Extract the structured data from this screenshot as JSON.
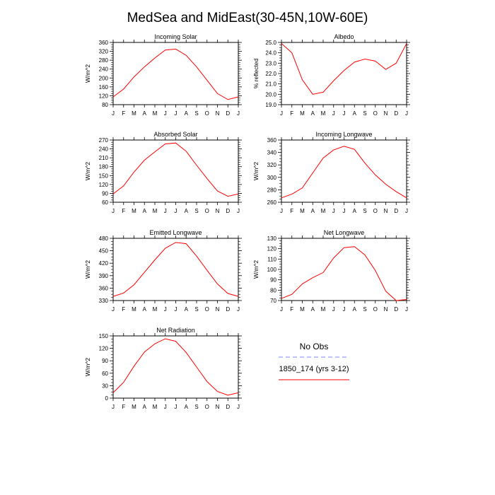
{
  "title": "MedSea and MidEast(30-45N,10W-60E)",
  "colors": {
    "model": "#ff0000",
    "obs": "#8080ff",
    "axis": "#000000"
  },
  "legend": {
    "entries": [
      {
        "label": "No Obs",
        "color": "#8080ff",
        "style": "dashed"
      },
      {
        "label": "1850_174 (yrs 3-12)",
        "color": "#ff0000",
        "style": "solid"
      }
    ]
  },
  "chart_data": [
    {
      "type": "line",
      "title": "Incoming Solar",
      "ylabel": "W/m^2",
      "categories": [
        "J",
        "F",
        "M",
        "A",
        "M",
        "J",
        "J",
        "A",
        "S",
        "O",
        "N",
        "D",
        "J"
      ],
      "ylim": [
        80,
        360
      ],
      "yticks": [
        80,
        120,
        160,
        200,
        240,
        280,
        320,
        360
      ],
      "ytick_labels": [
        "80",
        "120",
        "160",
        "200",
        "240",
        "280",
        "320",
        "360"
      ],
      "series": [
        {
          "values": [
            115,
            150,
            205,
            250,
            290,
            326,
            330,
            302,
            250,
            190,
            130,
            103,
            115
          ]
        }
      ]
    },
    {
      "type": "line",
      "title": "Albedo",
      "ylabel": "% reflected",
      "categories": [
        "J",
        "F",
        "M",
        "A",
        "M",
        "J",
        "J",
        "A",
        "S",
        "O",
        "N",
        "D",
        "J"
      ],
      "ylim": [
        19,
        25
      ],
      "yticks": [
        19,
        20,
        21,
        22,
        23,
        24,
        25
      ],
      "ytick_labels": [
        "19.0",
        "20.0",
        "21.0",
        "22.0",
        "23.0",
        "24.0",
        "25.0"
      ],
      "series": [
        {
          "values": [
            24.9,
            24.0,
            21.4,
            20.0,
            20.2,
            21.3,
            22.3,
            23.1,
            23.4,
            23.2,
            22.4,
            23.0,
            24.9
          ]
        }
      ]
    },
    {
      "type": "line",
      "title": "Absorbed Solar",
      "ylabel": "W/m^2",
      "categories": [
        "J",
        "F",
        "M",
        "A",
        "M",
        "J",
        "J",
        "A",
        "S",
        "O",
        "N",
        "D",
        "J"
      ],
      "ylim": [
        60,
        270
      ],
      "yticks": [
        60,
        90,
        120,
        150,
        180,
        210,
        240,
        270
      ],
      "ytick_labels": [
        "60",
        "90",
        "120",
        "150",
        "180",
        "210",
        "240",
        "270"
      ],
      "series": [
        {
          "values": [
            88,
            115,
            162,
            202,
            230,
            257,
            260,
            232,
            185,
            140,
            98,
            80,
            88
          ]
        }
      ]
    },
    {
      "type": "line",
      "title": "Incoming Longwave",
      "ylabel": "W/m^2",
      "categories": [
        "J",
        "F",
        "M",
        "A",
        "M",
        "J",
        "J",
        "A",
        "S",
        "O",
        "N",
        "D",
        "J"
      ],
      "ylim": [
        260,
        360
      ],
      "yticks": [
        260,
        280,
        300,
        320,
        340,
        360
      ],
      "ytick_labels": [
        "260",
        "280",
        "300",
        "320",
        "340",
        "360"
      ],
      "series": [
        {
          "values": [
            267,
            273,
            283,
            307,
            331,
            344,
            350,
            345,
            323,
            304,
            289,
            277,
            267
          ]
        }
      ]
    },
    {
      "type": "line",
      "title": "Emitted Longwave",
      "ylabel": "W/m^2",
      "categories": [
        "J",
        "F",
        "M",
        "A",
        "M",
        "J",
        "J",
        "A",
        "S",
        "O",
        "N",
        "D",
        "J"
      ],
      "ylim": [
        330,
        480
      ],
      "yticks": [
        330,
        360,
        390,
        420,
        450,
        480
      ],
      "ytick_labels": [
        "330",
        "360",
        "390",
        "420",
        "450",
        "480"
      ],
      "series": [
        {
          "values": [
            340,
            348,
            368,
            398,
            428,
            456,
            470,
            467,
            437,
            403,
            370,
            347,
            340
          ]
        }
      ]
    },
    {
      "type": "line",
      "title": "Net Longwave",
      "ylabel": "W/m^2",
      "categories": [
        "J",
        "F",
        "M",
        "A",
        "M",
        "J",
        "J",
        "A",
        "S",
        "O",
        "N",
        "D",
        "J"
      ],
      "ylim": [
        70,
        130
      ],
      "yticks": [
        70,
        80,
        90,
        100,
        110,
        120,
        130
      ],
      "ytick_labels": [
        "70",
        "80",
        "90",
        "100",
        "110",
        "120",
        "130"
      ],
      "series": [
        {
          "values": [
            72,
            76,
            86,
            92,
            97,
            111,
            121,
            122,
            114,
            99,
            79,
            70,
            71
          ]
        }
      ]
    },
    {
      "type": "line",
      "title": "Net Radiation",
      "ylabel": "W/m^2",
      "categories": [
        "J",
        "F",
        "M",
        "A",
        "M",
        "J",
        "J",
        "A",
        "S",
        "O",
        "N",
        "D",
        "J"
      ],
      "ylim": [
        0,
        150
      ],
      "yticks": [
        0,
        30,
        60,
        90,
        120,
        150
      ],
      "ytick_labels": [
        "0",
        "30",
        "60",
        "90",
        "120",
        "150"
      ],
      "series": [
        {
          "values": [
            13,
            38,
            77,
            111,
            131,
            143,
            137,
            110,
            75,
            40,
            16,
            7,
            13
          ]
        }
      ]
    }
  ]
}
